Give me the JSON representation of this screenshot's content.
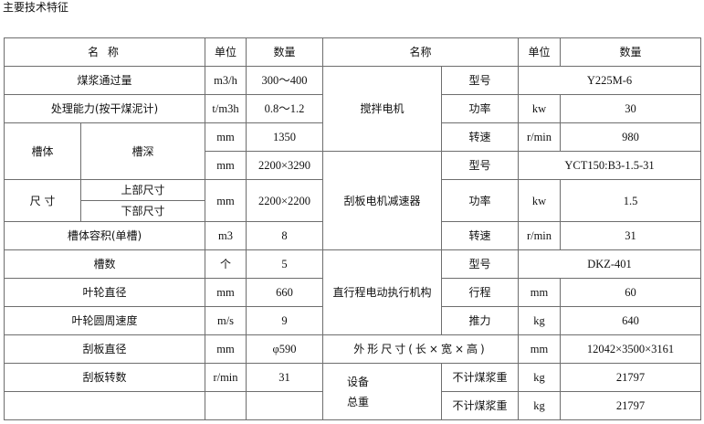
{
  "title": "主要技术特征",
  "header": {
    "name": "名 称",
    "unit": "单位",
    "qty": "数量",
    "name2": "名称",
    "unit2": "单位",
    "qty2": "数量"
  },
  "left": {
    "throughput": {
      "label": "煤浆通过量",
      "unit": "m3/h",
      "value": "300～400"
    },
    "capacity": {
      "label": "处理能力(按干煤泥计)",
      "unit": "t/m3h",
      "value": "0.8～1.2"
    },
    "tank": {
      "label": "槽体",
      "sub": "槽深",
      "unit1": "mm",
      "value1": "1350",
      "unit2": "mm",
      "value2": "2200×3290"
    },
    "size": {
      "label": "尺 寸",
      "upper": "上部尺寸",
      "lower": "下部尺寸",
      "unit": "mm",
      "value": "2200×2200"
    },
    "volume": {
      "label": "槽体容积(单槽)",
      "unit": "m3",
      "value": "8"
    },
    "count": {
      "label": "槽数",
      "unit": "个",
      "value": "5"
    },
    "impeller_dia": {
      "label": "叶轮直径",
      "unit": "mm",
      "value": "660"
    },
    "impeller_speed": {
      "label": "叶轮圆周速度",
      "unit": "m/s",
      "value": "9"
    },
    "scraper_dia": {
      "label": "刮板直径",
      "unit": "mm",
      "value": "φ590"
    },
    "scraper_rpm": {
      "label": "刮板转数",
      "unit": "r/min",
      "value": "31"
    }
  },
  "right": {
    "mixer": {
      "label": "搅拌电机",
      "model_label": "型号",
      "model": "Y225M-6",
      "power_label": "功率",
      "power_unit": "kw",
      "power": "30",
      "speed_label": "转速",
      "speed_unit": "r/min",
      "speed": "980"
    },
    "reducer": {
      "label": "刮板电机减速器",
      "model_label": "型号",
      "model": "YCT150:B3-1.5-31",
      "power_label": "功率",
      "power_unit": "kw",
      "power": "1.5",
      "speed_label": "转速",
      "speed_unit": "r/min",
      "speed": "31"
    },
    "actuator": {
      "label": "直行程电动执行机构",
      "model_label": "型号",
      "model": "DKZ-401",
      "stroke_label": "行程",
      "stroke_unit": "mm",
      "stroke": "60",
      "thrust_label": "推力",
      "thrust_unit": "kg",
      "thrust": "640"
    },
    "dimensions": {
      "label": "外形尺寸(长×宽×高)",
      "unit": "mm",
      "value": "12042×3500×3161"
    },
    "weight": {
      "label1": "设备",
      "label2": "总重",
      "row1_label": "不计煤浆重",
      "row1_unit": "kg",
      "row1_value": "21797",
      "row2_label": "不计煤浆重",
      "row2_unit": "kg",
      "row2_value": "21797"
    }
  }
}
